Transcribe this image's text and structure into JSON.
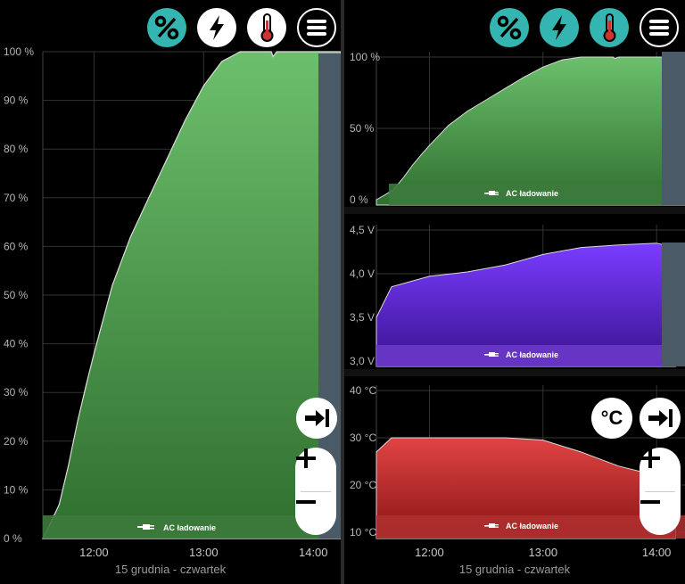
{
  "toolbar": {
    "buttons": [
      {
        "name": "percent",
        "icon": "percent-icon"
      },
      {
        "name": "power",
        "icon": "lightning-icon"
      },
      {
        "name": "temperature",
        "icon": "thermometer-icon"
      },
      {
        "name": "menu",
        "icon": "hamburger-menu-icon"
      }
    ],
    "active_color": "#35b5b2"
  },
  "left_chart": {
    "y_ticks": [
      "100 %",
      "90 %",
      "80 %",
      "70 %",
      "60 %",
      "50 %",
      "40 %",
      "30 %",
      "20 %",
      "10 %",
      "0 %"
    ],
    "x_ticks": [
      "12:00",
      "13:00",
      "14:00"
    ],
    "date_label": "15 grudnia - czwartek",
    "event_label": "AC ładowanie",
    "fill_color": "#5fb55f"
  },
  "right_charts": {
    "battery": {
      "y_ticks": [
        "100 %",
        "50 %",
        "0 %"
      ],
      "event_label": "AC ładowanie"
    },
    "voltage": {
      "y_ticks": [
        "4,5 V",
        "4,0 V",
        "3,5 V",
        "3,0 V"
      ],
      "event_label": "AC ładowanie"
    },
    "temperature": {
      "y_ticks": [
        "40 °C",
        "30 °C",
        "20 °C",
        "10 °C"
      ],
      "event_label": "AC ładowanie",
      "unit_button": "°C"
    },
    "x_ticks": [
      "12:00",
      "13:00",
      "14:00"
    ],
    "date_label": "15 grudnia - czwartek"
  },
  "chart_data": [
    {
      "type": "area",
      "title": "",
      "ylabel": "",
      "ylim": [
        0,
        100
      ],
      "x": [
        "11:32",
        "11:36",
        "11:41",
        "11:46",
        "11:51",
        "11:56",
        "12:00",
        "12:10",
        "12:20",
        "12:30",
        "12:40",
        "12:50",
        "13:00",
        "13:10",
        "13:20",
        "13:30",
        "13:37",
        "13:38",
        "13:40",
        "13:50",
        "14:00",
        "14:03",
        "14:10",
        "14:15"
      ],
      "series": [
        {
          "values": [
            0,
            3,
            7,
            15,
            24,
            32,
            38,
            52,
            62,
            70,
            78,
            86,
            93,
            98,
            100,
            100,
            100,
            99,
            100,
            100,
            100,
            100,
            100,
            100
          ]
        }
      ]
    },
    {
      "type": "area",
      "ylim": [
        3.0,
        4.5
      ],
      "x": [
        "11:32",
        "11:40",
        "12:00",
        "12:20",
        "12:40",
        "13:00",
        "13:20",
        "13:40",
        "14:00",
        "14:10"
      ],
      "series": [
        {
          "values": [
            3.5,
            3.85,
            3.97,
            4.02,
            4.1,
            4.22,
            4.3,
            4.33,
            4.35,
            4.3
          ]
        }
      ]
    },
    {
      "type": "area",
      "ylim": [
        10,
        40
      ],
      "x": [
        "11:32",
        "11:40",
        "12:00",
        "12:20",
        "12:40",
        "13:00",
        "13:20",
        "13:40",
        "14:00",
        "14:10"
      ],
      "series": [
        {
          "values": [
            27,
            30,
            30,
            30,
            30,
            29.5,
            27,
            24,
            22,
            22
          ]
        }
      ]
    }
  ]
}
